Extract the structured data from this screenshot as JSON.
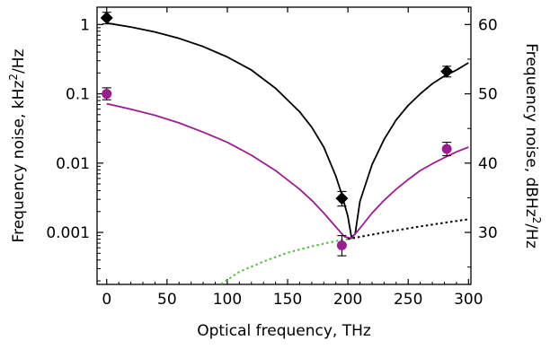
{
  "chart_data": {
    "type": "line",
    "xlabel": "Optical frequency, THz",
    "ylabel_left": "Frequency noise, kHz",
    "ylabel_left_sup": "2",
    "ylabel_left_suffix": "/Hz",
    "ylabel_right": "Frequency noise, dBHz",
    "ylabel_right_sup": "2",
    "ylabel_right_suffix": "/Hz",
    "xlim": [
      -8,
      302
    ],
    "ylim_left_log10": [
      -3.75,
      0.25
    ],
    "ylim_right_db": [
      22.5,
      62.5
    ],
    "y_scale_left": "log",
    "x_ticks": [
      0,
      50,
      100,
      150,
      200,
      250,
      300
    ],
    "x_tick_labels": [
      "0",
      "50",
      "100",
      "150",
      "200",
      "250",
      "300"
    ],
    "y_ticks_left": [
      1,
      0.1,
      0.01,
      0.001
    ],
    "y_tick_labels_left": [
      "1",
      "0.1",
      "0.01",
      "0.001"
    ],
    "y_ticks_right": [
      30,
      40,
      50,
      60
    ],
    "y_tick_labels_right": [
      "30",
      "40",
      "50",
      "60"
    ],
    "series": [
      {
        "color": "#000000",
        "style": "solid",
        "x": [
          0,
          20,
          40,
          60,
          80,
          100,
          120,
          140,
          160,
          170,
          180,
          190,
          195,
          200,
          203,
          206,
          210,
          220,
          230,
          240,
          250,
          260,
          270,
          280,
          290,
          300
        ],
        "y": [
          1.05,
          0.92,
          0.78,
          0.63,
          0.48,
          0.34,
          0.22,
          0.12,
          0.055,
          0.033,
          0.017,
          0.0065,
          0.0035,
          0.0017,
          0.00085,
          0.00095,
          0.0028,
          0.0095,
          0.022,
          0.042,
          0.068,
          0.1,
          0.14,
          0.18,
          0.22,
          0.28
        ]
      },
      {
        "color": "#9b1e8e",
        "style": "solid",
        "x": [
          0,
          20,
          40,
          60,
          80,
          100,
          120,
          140,
          160,
          170,
          180,
          190,
          197,
          203,
          210,
          220,
          230,
          240,
          250,
          260,
          270,
          280,
          290,
          300
        ],
        "y": [
          0.072,
          0.06,
          0.049,
          0.038,
          0.028,
          0.02,
          0.013,
          0.0078,
          0.0042,
          0.0029,
          0.0019,
          0.0012,
          0.00087,
          0.00082,
          0.00115,
          0.0019,
          0.0029,
          0.0042,
          0.0058,
          0.0078,
          0.0098,
          0.012,
          0.0145,
          0.017
        ]
      },
      {
        "color": "#5cb84a",
        "style": "dotted",
        "x": [
          95,
          110,
          130,
          150,
          170,
          190,
          200
        ],
        "y": [
          0.00018,
          0.00027,
          0.00038,
          0.00051,
          0.00063,
          0.00075,
          0.0008
        ]
      },
      {
        "color": "#000000",
        "style": "dotted",
        "x": [
          200,
          220,
          240,
          260,
          280,
          300
        ],
        "y": [
          0.0008,
          0.00093,
          0.00107,
          0.00122,
          0.00138,
          0.00155
        ]
      }
    ],
    "points": [
      {
        "color": "#000000",
        "marker": "diamond",
        "x": [
          0,
          195,
          282
        ],
        "y": [
          1.25,
          0.0031,
          0.21
        ],
        "y_err_low": [
          1.02,
          0.0024,
          0.175
        ],
        "y_err_high": [
          1.5,
          0.0039,
          0.25
        ]
      },
      {
        "color": "#9b1e8e",
        "marker": "circle",
        "x": [
          0,
          195,
          282
        ],
        "y": [
          0.1,
          0.00065,
          0.016
        ],
        "y_err_low": [
          0.082,
          0.00046,
          0.0128
        ],
        "y_err_high": [
          0.122,
          0.0009,
          0.02
        ]
      }
    ]
  }
}
